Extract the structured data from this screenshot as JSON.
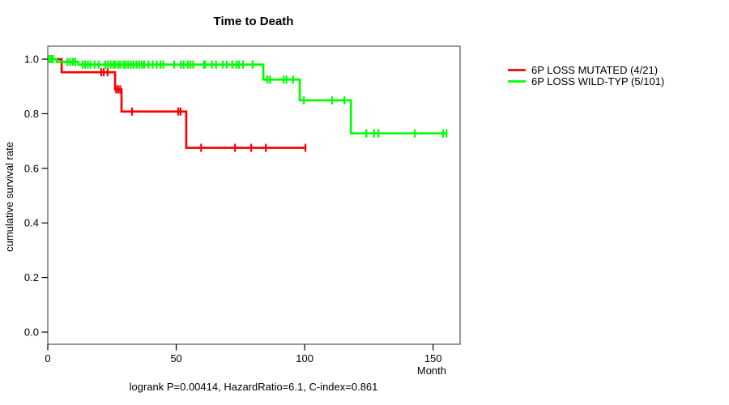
{
  "chart_data": {
    "type": "line",
    "chart_style": "kaplan-meier-survival-step",
    "title": "Time to Death",
    "xlabel": "Month",
    "ylabel": "cumulative survival rate",
    "annotation": "logrank P=0.00414, HazardRatio=6.1, C-index=0.861",
    "x_ticks": [
      0,
      50,
      100,
      150
    ],
    "y_ticks": [
      0,
      0.2,
      0.4,
      0.6,
      0.8,
      1
    ],
    "xlim": [
      0,
      160
    ],
    "ylim": [
      0,
      1.04
    ],
    "grid": false,
    "legend_position": "right-outside",
    "series": [
      {
        "name": "6P LOSS MUTATED (4/21)",
        "color": "#ff0000",
        "steps": [
          {
            "t": 0,
            "s": 1.0
          },
          {
            "t": 5.4,
            "s": 0.952
          },
          {
            "t": 26.2,
            "s": 0.889
          },
          {
            "t": 28.7,
            "s": 0.808
          },
          {
            "t": 53.9,
            "s": 0.675
          }
        ],
        "end_t": 100.3,
        "censor_times": [
          20.8,
          21.8,
          23.3,
          26.6,
          27.4,
          28.2,
          32.8,
          50.8,
          51.7,
          59.7,
          72.9,
          79.2,
          84.9,
          100.3
        ]
      },
      {
        "name": "6P LOSS WILD-TYP (5/101)",
        "color": "#00ff00",
        "steps": [
          {
            "t": 0,
            "s": 1.0
          },
          {
            "t": 3.5,
            "s": 0.99
          },
          {
            "t": 11.9,
            "s": 0.98
          },
          {
            "t": 83.9,
            "s": 0.925
          },
          {
            "t": 98.1,
            "s": 0.849
          },
          {
            "t": 118,
            "s": 0.728
          }
        ],
        "end_t": 155.3,
        "censor_times": [
          0.6,
          1.4,
          2.0,
          7.7,
          8.7,
          9.8,
          10.7,
          13.5,
          14.5,
          15.6,
          16.6,
          18.2,
          19.8,
          22.4,
          23.4,
          24.5,
          25.6,
          26.3,
          27.4,
          28.2,
          29.5,
          30.3,
          31.3,
          32.4,
          33.4,
          34.5,
          35.5,
          36.6,
          37.5,
          39.2,
          40.8,
          42.4,
          43.9,
          45.0,
          49.2,
          51.8,
          52.9,
          54.5,
          55.5,
          56.6,
          60.8,
          61.3,
          63.9,
          65.5,
          68.1,
          69.7,
          71.8,
          73.4,
          74.4,
          76.0,
          79.7,
          85.5,
          86.5,
          91.8,
          92.9,
          95.5,
          99.7,
          110.7,
          115.5,
          124.0,
          127.0,
          128.7,
          142.9,
          153.9,
          155.2
        ]
      }
    ]
  }
}
